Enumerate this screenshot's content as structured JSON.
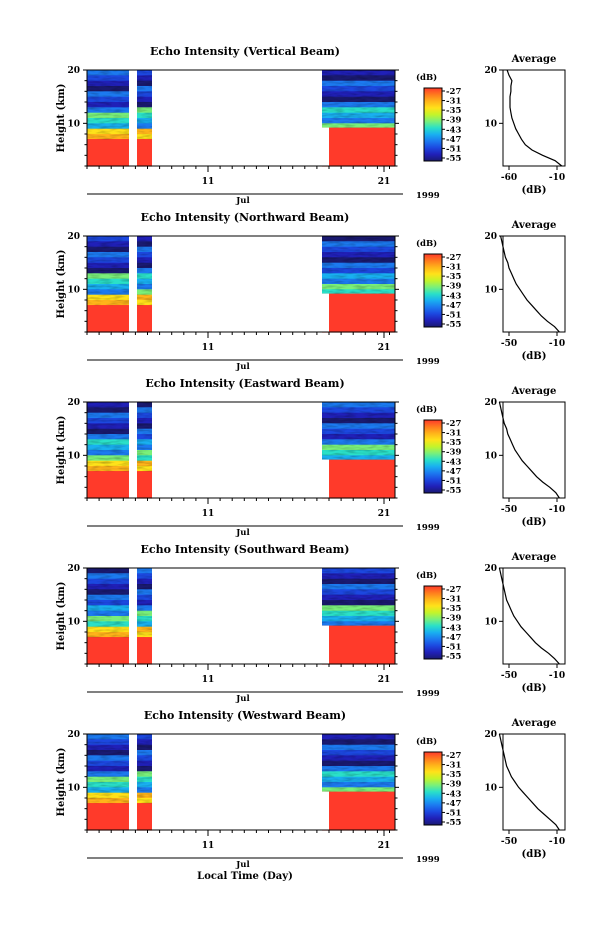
{
  "figure": {
    "xlabel": "Local Time (Day)",
    "month_label": "Jul",
    "year_label": "1999",
    "x_tick_labels": [
      "11",
      "21"
    ]
  },
  "colorbar": {
    "title": "(dB)",
    "labels": [
      "-27",
      "-31",
      "-35",
      "-39",
      "-43",
      "-47",
      "-51",
      "-55"
    ],
    "colors": [
      "#ff3a2a",
      "#ff7a1e",
      "#ffb41a",
      "#ffe21a",
      "#c4f42a",
      "#7af07a",
      "#2ae0c8",
      "#19b0f0",
      "#1c7af0",
      "#1c48e0",
      "#2020b8",
      "#1a1a70"
    ]
  },
  "chart_data": [
    {
      "type": "heatmap",
      "title": "Echo Intensity (Vertical Beam)",
      "ylabel": "Height (km)",
      "y_ticks": [
        10,
        20
      ],
      "ylim": [
        2,
        20
      ],
      "x_ticks": [
        "11",
        "21"
      ],
      "average": {
        "title": "Average",
        "xlabel": "(dB)",
        "x_ticks": [
          -60,
          -10
        ],
        "y_ticks": [
          10,
          20
        ],
        "profile": [
          [
            -5,
            2
          ],
          [
            -12,
            3
          ],
          [
            -25,
            4
          ],
          [
            -36,
            5
          ],
          [
            -43,
            6
          ],
          [
            -47,
            7
          ],
          [
            -50,
            8
          ],
          [
            -53,
            9
          ],
          [
            -55,
            10
          ],
          [
            -57,
            11
          ],
          [
            -58,
            12
          ],
          [
            -59,
            13
          ],
          [
            -59,
            14
          ],
          [
            -59,
            15
          ],
          [
            -58,
            16
          ],
          [
            -58,
            17
          ],
          [
            -57,
            18
          ],
          [
            -60,
            19
          ],
          [
            -62,
            20
          ]
        ]
      }
    },
    {
      "type": "heatmap",
      "title": "Echo Intensity (Northward Beam)",
      "ylabel": "Height (km)",
      "y_ticks": [
        10,
        20
      ],
      "ylim": [
        2,
        20
      ],
      "x_ticks": [
        "11",
        "21"
      ],
      "average": {
        "title": "Average",
        "xlabel": "(dB)",
        "x_ticks": [
          -50,
          -10
        ],
        "y_ticks": [
          10,
          20
        ],
        "profile": [
          [
            -8,
            2
          ],
          [
            -12,
            3
          ],
          [
            -18,
            4
          ],
          [
            -23,
            5
          ],
          [
            -27,
            6
          ],
          [
            -31,
            7
          ],
          [
            -35,
            8
          ],
          [
            -38,
            9
          ],
          [
            -41,
            10
          ],
          [
            -44,
            11
          ],
          [
            -46,
            12
          ],
          [
            -48,
            13
          ],
          [
            -50,
            14
          ],
          [
            -51,
            15
          ],
          [
            -53,
            16
          ],
          [
            -54,
            17
          ],
          [
            -55,
            18
          ],
          [
            -56,
            19
          ],
          [
            -57,
            20
          ]
        ]
      }
    },
    {
      "type": "heatmap",
      "title": "Echo Intensity (Eastward Beam)",
      "ylabel": "Height (km)",
      "y_ticks": [
        10,
        20
      ],
      "ylim": [
        2,
        20
      ],
      "x_ticks": [
        "11",
        "21"
      ],
      "average": {
        "title": "Average",
        "xlabel": "(dB)",
        "x_ticks": [
          -50,
          -10
        ],
        "y_ticks": [
          10,
          20
        ],
        "profile": [
          [
            -8,
            2
          ],
          [
            -11,
            3
          ],
          [
            -16,
            4
          ],
          [
            -22,
            5
          ],
          [
            -27,
            6
          ],
          [
            -31,
            7
          ],
          [
            -35,
            8
          ],
          [
            -39,
            9
          ],
          [
            -42,
            10
          ],
          [
            -45,
            11
          ],
          [
            -47,
            12
          ],
          [
            -49,
            13
          ],
          [
            -51,
            14
          ],
          [
            -52,
            15
          ],
          [
            -54,
            16
          ],
          [
            -55,
            17
          ],
          [
            -56,
            18
          ],
          [
            -57,
            19
          ],
          [
            -58,
            20
          ]
        ]
      }
    },
    {
      "type": "heatmap",
      "title": "Echo Intensity (Southward Beam)",
      "ylabel": "Height (km)",
      "y_ticks": [
        10,
        20
      ],
      "ylim": [
        2,
        20
      ],
      "x_ticks": [
        "11",
        "21"
      ],
      "average": {
        "title": "Average",
        "xlabel": "(dB)",
        "x_ticks": [
          -50,
          -10
        ],
        "y_ticks": [
          10,
          20
        ],
        "profile": [
          [
            -8,
            2
          ],
          [
            -12,
            3
          ],
          [
            -17,
            4
          ],
          [
            -23,
            5
          ],
          [
            -28,
            6
          ],
          [
            -32,
            7
          ],
          [
            -36,
            8
          ],
          [
            -40,
            9
          ],
          [
            -43,
            10
          ],
          [
            -46,
            11
          ],
          [
            -48,
            12
          ],
          [
            -50,
            13
          ],
          [
            -52,
            14
          ],
          [
            -53,
            15
          ],
          [
            -54,
            16
          ],
          [
            -55,
            17
          ],
          [
            -56,
            18
          ],
          [
            -57,
            19
          ],
          [
            -58,
            20
          ]
        ]
      }
    },
    {
      "type": "heatmap",
      "title": "Echo Intensity (Westward Beam)",
      "ylabel": "Height (km)",
      "y_ticks": [
        10,
        20
      ],
      "ylim": [
        2,
        20
      ],
      "x_ticks": [
        "11",
        "21"
      ],
      "average": {
        "title": "Average",
        "xlabel": "(dB)",
        "x_ticks": [
          -50,
          -10
        ],
        "y_ticks": [
          10,
          20
        ],
        "profile": [
          [
            -8,
            2
          ],
          [
            -11,
            3
          ],
          [
            -16,
            4
          ],
          [
            -21,
            5
          ],
          [
            -26,
            6
          ],
          [
            -30,
            7
          ],
          [
            -34,
            8
          ],
          [
            -38,
            9
          ],
          [
            -42,
            10
          ],
          [
            -45,
            11
          ],
          [
            -48,
            12
          ],
          [
            -50,
            13
          ],
          [
            -52,
            14
          ],
          [
            -53,
            15
          ],
          [
            -54,
            16
          ],
          [
            -55,
            17
          ],
          [
            -56,
            18
          ],
          [
            -57,
            19
          ],
          [
            -58,
            20
          ]
        ]
      }
    }
  ]
}
